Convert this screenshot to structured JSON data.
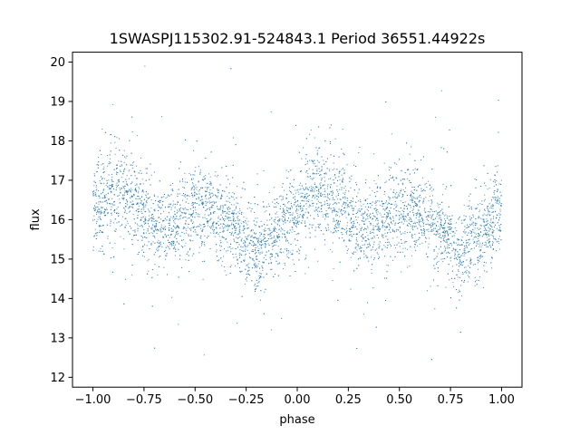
{
  "chart_data": {
    "type": "scatter",
    "title": "1SWASPJ115302.91-524843.1 Period 36551.44922s",
    "xlabel": "phase",
    "ylabel": "flux",
    "xlim": [
      -1.1,
      1.1
    ],
    "ylim": [
      11.75,
      20.25
    ],
    "x_ticks": [
      -1.0,
      -0.75,
      -0.5,
      -0.25,
      0.0,
      0.25,
      0.5,
      0.75,
      1.0
    ],
    "x_tick_labels": [
      "−1.00",
      "−0.75",
      "−0.50",
      "−0.25",
      "0.00",
      "0.25",
      "0.50",
      "0.75",
      "1.00"
    ],
    "y_ticks": [
      12,
      13,
      14,
      15,
      16,
      17,
      18,
      19,
      20
    ],
    "y_tick_labels": [
      "12",
      "13",
      "14",
      "15",
      "16",
      "17",
      "18",
      "19",
      "20"
    ],
    "grid": false,
    "legend": "none",
    "marker_color": "#1f77b4",
    "series": [
      {
        "x": [
          -1.0,
          -0.9,
          -0.8,
          -0.7,
          -0.6,
          -0.5,
          -0.4,
          -0.3,
          -0.2,
          -0.1,
          0.0,
          0.1,
          0.2,
          0.3,
          0.4,
          0.5,
          0.6,
          0.7,
          0.8,
          0.9,
          1.0
        ],
        "y": [
          16.3,
          16.6,
          16.5,
          15.8,
          15.9,
          16.3,
          16.2,
          15.7,
          15.2,
          15.6,
          16.3,
          16.7,
          16.4,
          15.8,
          15.9,
          16.3,
          16.2,
          15.7,
          15.2,
          15.6,
          16.3
        ],
        "y_spread": [
          0.55,
          0.6,
          0.6,
          0.5,
          0.5,
          0.55,
          0.55,
          0.5,
          0.5,
          0.5,
          0.55,
          0.6,
          0.6,
          0.5,
          0.5,
          0.55,
          0.55,
          0.5,
          0.5,
          0.5,
          0.55
        ]
      }
    ]
  }
}
